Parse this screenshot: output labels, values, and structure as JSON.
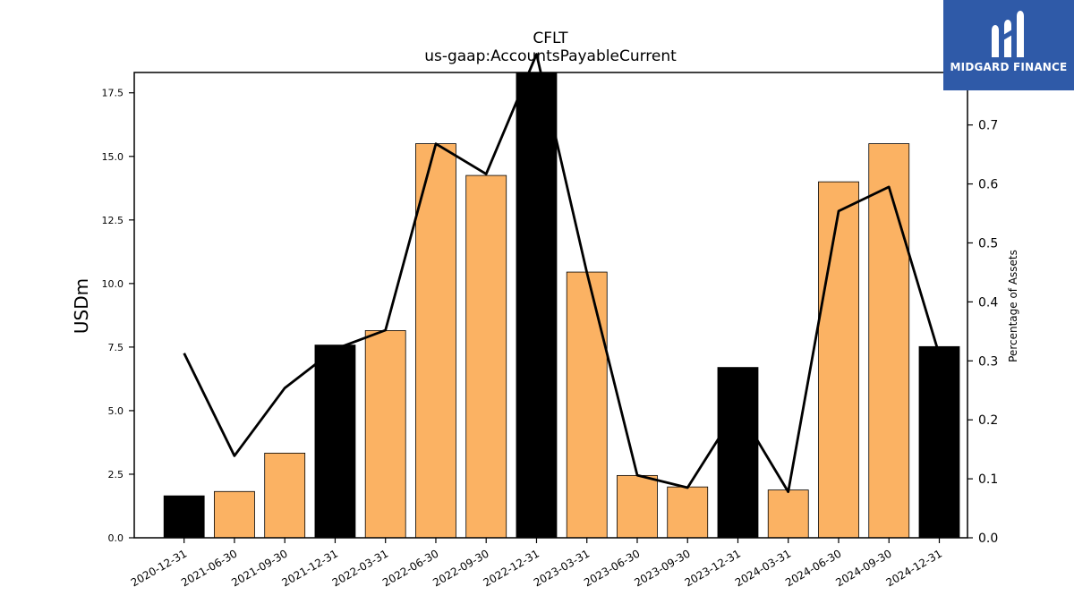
{
  "chart_data": {
    "type": "bar",
    "title": "CFLT",
    "subtitle": "us-gaap:AccountsPayableCurrent",
    "ylabel": "USDm",
    "y2label": "Percentage of Assets",
    "categories": [
      "2020-12-31",
      "2021-06-30",
      "2021-09-30",
      "2021-12-31",
      "2022-03-31",
      "2022-06-30",
      "2022-09-30",
      "2022-12-31",
      "2023-03-31",
      "2023-06-30",
      "2023-09-30",
      "2023-12-31",
      "2024-03-31",
      "2024-06-30",
      "2024-09-30",
      "2024-12-31"
    ],
    "series": [
      {
        "type": "bar",
        "axis": "left",
        "values": [
          1.65,
          1.82,
          3.33,
          7.58,
          8.15,
          15.5,
          14.25,
          18.3,
          10.45,
          2.45,
          2.0,
          6.7,
          1.88,
          14.0,
          15.5,
          7.52
        ],
        "colors": [
          "#000000",
          "#fbb263",
          "#fbb263",
          "#000000",
          "#fbb263",
          "#fbb263",
          "#fbb263",
          "#000000",
          "#fbb263",
          "#fbb263",
          "#fbb263",
          "#000000",
          "#fbb263",
          "#fbb263",
          "#fbb263",
          "#000000"
        ]
      },
      {
        "type": "line",
        "axis": "right",
        "values": [
          0.313,
          0.139,
          0.254,
          0.32,
          0.352,
          0.668,
          0.617,
          0.82,
          0.45,
          0.106,
          0.085,
          0.22,
          0.078,
          0.554,
          0.595,
          0.31
        ],
        "color": "#000000"
      }
    ],
    "ylim": [
      0,
      18.3
    ],
    "y2lim": [
      0,
      0.789
    ],
    "yticks": [
      "0.0",
      "2.5",
      "5.0",
      "7.5",
      "10.0",
      "12.5",
      "15.0",
      "17.5"
    ],
    "y2ticks": [
      "0.0",
      "0.1",
      "0.2",
      "0.3",
      "0.4",
      "0.5",
      "0.6",
      "0.7"
    ],
    "grid": false,
    "legend": "none"
  },
  "logo": {
    "text": "MIDGARD FINANCE",
    "icon": "midgard-logo-icon",
    "bg_color": "#2f5aa8"
  }
}
